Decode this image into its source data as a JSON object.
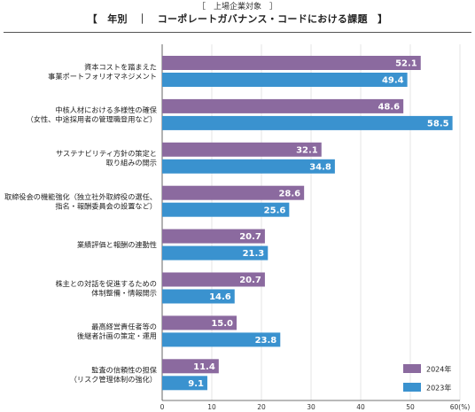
{
  "header": {
    "subtitle": "［　上場企業対象　］",
    "title": "【　年別　｜　コーポレートガバナンス・コードにおける課題　】"
  },
  "chart_data": {
    "type": "bar",
    "orientation": "horizontal",
    "categories": [
      [
        "資本コストを踏まえた",
        "事業ポートフォリオマネジメント"
      ],
      [
        "中核人材における多様性の確保",
        "（女性、中途採用者の管理職登用など）"
      ],
      [
        "サステナビリティ方針の策定と",
        "取り組みの開示"
      ],
      [
        "取締役会の機能強化（独立社外取締役の選任、",
        "指名・報酬委員会の設置など）"
      ],
      [
        "業績評価と報酬の連動性"
      ],
      [
        "株主との対話を促進するための",
        "体制整備・情報開示"
      ],
      [
        "最高経営責任者等の",
        "後継者計画の策定・運用"
      ],
      [
        "監査の信頼性の担保",
        "（リスク管理体制の強化）"
      ]
    ],
    "series": [
      {
        "name": "2024年",
        "color": "#8b6a9f",
        "values": [
          52.1,
          48.6,
          32.1,
          28.6,
          20.7,
          20.7,
          15.0,
          11.4
        ]
      },
      {
        "name": "2023年",
        "color": "#3a92cf",
        "values": [
          49.4,
          58.5,
          34.8,
          25.6,
          21.3,
          14.6,
          23.8,
          9.1
        ]
      }
    ],
    "xlim": [
      0,
      60
    ],
    "xticks": [
      "0",
      "10",
      "20",
      "30",
      "40",
      "50",
      "60(%)"
    ],
    "legend_position": "bottom-right",
    "grid": true
  }
}
